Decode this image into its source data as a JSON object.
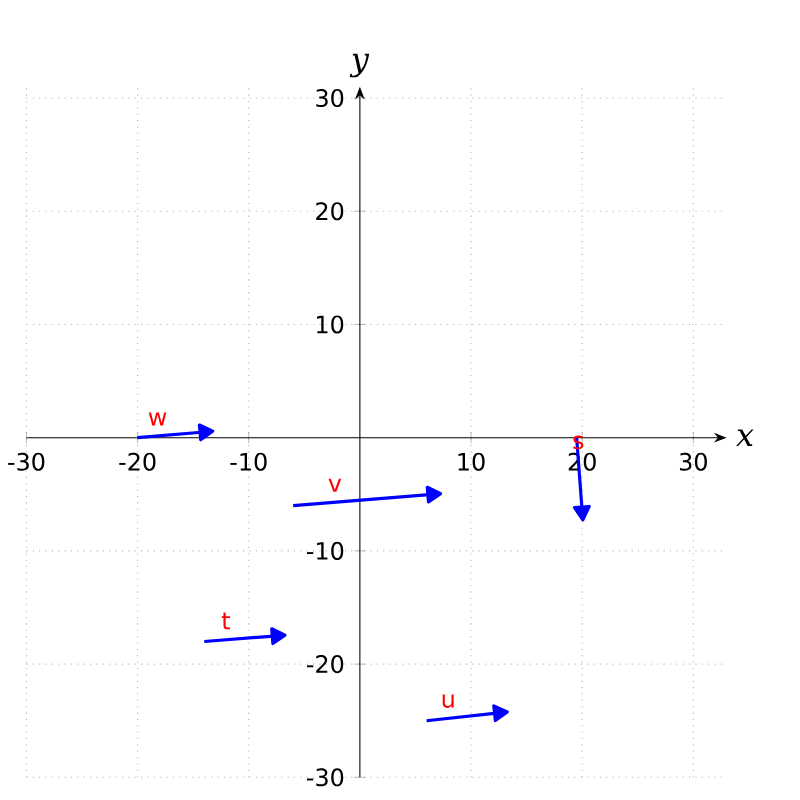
{
  "chart_data": {
    "type": "line",
    "xlabel": "x",
    "ylabel": "y",
    "xlim": [
      -30,
      33
    ],
    "ylim": [
      -30,
      31
    ],
    "xticks": [
      -30,
      -20,
      -10,
      10,
      20,
      30
    ],
    "yticks": [
      -30,
      -20,
      -10,
      10,
      20,
      30
    ],
    "grid": true,
    "marker": "triangle",
    "legend": false,
    "line_style": "solid",
    "series": [
      {
        "name": "w",
        "color": "#0000ff",
        "x": [
          -20,
          -14
        ],
        "values": [
          0,
          0.5
        ]
      },
      {
        "name": "v",
        "color": "#0000ff",
        "x": [
          -6,
          6.5
        ],
        "values": [
          -6,
          -5
        ]
      },
      {
        "name": "s",
        "color": "#0000ff",
        "x": [
          19.5,
          20
        ],
        "values": [
          0,
          -6.5
        ]
      },
      {
        "name": "t",
        "color": "#0000ff",
        "x": [
          -14,
          -7.5
        ],
        "values": [
          -18,
          -17.5
        ]
      },
      {
        "name": "u",
        "color": "#0000ff",
        "x": [
          6,
          12.5
        ],
        "values": [
          -25,
          -24.3
        ]
      }
    ]
  }
}
